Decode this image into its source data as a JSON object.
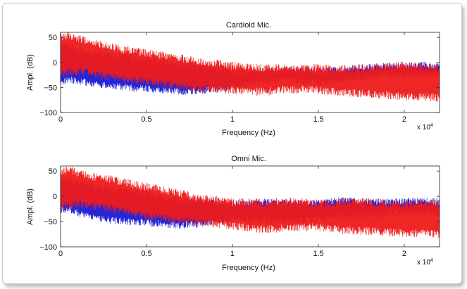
{
  "chart_data": [
    {
      "type": "line",
      "title": "Cardioid Mic.",
      "xlabel": "Frequency (Hz)",
      "ylabel": "Ampl. (dB)",
      "x_multiplier_label": "x 10",
      "x_multiplier_exp": "4",
      "xlim": [
        0,
        22050
      ],
      "ylim": [
        -100,
        60
      ],
      "xticks": [
        0,
        5000,
        10000,
        15000,
        20000
      ],
      "xtick_labels": [
        "0",
        "0.5",
        "1",
        "1.5",
        "2"
      ],
      "yticks": [
        50,
        0,
        -50,
        -100
      ],
      "ytick_labels": [
        "50",
        "0",
        "−50",
        "−100"
      ],
      "series": [
        {
          "color": "#1a1ad6",
          "x": [
            0,
            500,
            1000,
            2000,
            3000,
            4000,
            5000,
            6000,
            7000,
            8000,
            9000,
            10000,
            11000,
            12000,
            13000,
            14000,
            15000,
            16000,
            17000,
            18000,
            19000,
            20000,
            21000,
            22050
          ],
          "upper": [
            35,
            30,
            22,
            15,
            12,
            8,
            4,
            0,
            -5,
            -10,
            -15,
            -20,
            -22,
            -20,
            -18,
            -20,
            -22,
            -18,
            -14,
            -12,
            -10,
            -8,
            -8,
            -10
          ],
          "lower": [
            -40,
            -30,
            -35,
            -40,
            -45,
            -48,
            -50,
            -52,
            -55,
            -55,
            -50,
            -45,
            -40,
            -35,
            -32,
            -35,
            -38,
            -36,
            -30,
            -26,
            -22,
            -22,
            -22,
            -22
          ],
          "noise": 14
        },
        {
          "color": "#ee1a1a",
          "x": [
            0,
            500,
            1000,
            2000,
            3000,
            4000,
            5000,
            6000,
            7000,
            8000,
            9000,
            10000,
            11000,
            12000,
            13000,
            14000,
            15000,
            16000,
            17000,
            18000,
            19000,
            20000,
            21000,
            22050
          ],
          "upper": [
            48,
            50,
            45,
            35,
            28,
            20,
            15,
            10,
            5,
            0,
            -5,
            -10,
            -12,
            -14,
            -15,
            -15,
            -14,
            -16,
            -15,
            -14,
            -12,
            -10,
            -12,
            -15
          ],
          "lower": [
            -20,
            -15,
            -15,
            -20,
            -25,
            -30,
            -35,
            -40,
            -45,
            -48,
            -50,
            -52,
            -55,
            -55,
            -52,
            -50,
            -52,
            -55,
            -58,
            -60,
            -62,
            -65,
            -65,
            -68
          ],
          "noise": 16
        }
      ]
    },
    {
      "type": "line",
      "title": "Omni Mic.",
      "xlabel": "Frequency (Hz)",
      "ylabel": "Ampl. (dB)",
      "x_multiplier_label": "x 10",
      "x_multiplier_exp": "4",
      "xlim": [
        0,
        22050
      ],
      "ylim": [
        -100,
        60
      ],
      "xticks": [
        0,
        5000,
        10000,
        15000,
        20000
      ],
      "xtick_labels": [
        "0",
        "0.5",
        "1",
        "1.5",
        "2"
      ],
      "yticks": [
        50,
        0,
        -50,
        -100
      ],
      "ytick_labels": [
        "50",
        "0",
        "−50",
        "−100"
      ],
      "series": [
        {
          "color": "#1a1ad6",
          "x": [
            0,
            500,
            1000,
            2000,
            3000,
            4000,
            5000,
            6000,
            7000,
            8000,
            9000,
            10000,
            11000,
            12000,
            13000,
            14000,
            15000,
            16000,
            17000,
            18000,
            19000,
            20000,
            21000,
            22050
          ],
          "upper": [
            30,
            28,
            25,
            18,
            12,
            8,
            2,
            -5,
            -10,
            -12,
            -15,
            -18,
            -15,
            -14,
            -16,
            -18,
            -15,
            -12,
            -12,
            -14,
            -14,
            -12,
            -12,
            -14
          ],
          "lower": [
            -25,
            -22,
            -30,
            -38,
            -45,
            -48,
            -50,
            -52,
            -55,
            -52,
            -48,
            -45,
            -42,
            -45,
            -48,
            -45,
            -40,
            -38,
            -36,
            -35,
            -32,
            -30,
            -30,
            -32
          ],
          "noise": 14
        },
        {
          "color": "#ee1a1a",
          "x": [
            0,
            500,
            1000,
            2000,
            3000,
            4000,
            5000,
            6000,
            7000,
            8000,
            9000,
            10000,
            11000,
            12000,
            13000,
            14000,
            15000,
            16000,
            17000,
            18000,
            19000,
            20000,
            21000,
            22050
          ],
          "upper": [
            45,
            50,
            42,
            35,
            30,
            22,
            15,
            10,
            2,
            -5,
            -10,
            -15,
            -15,
            -16,
            -12,
            -14,
            -18,
            -16,
            -14,
            -15,
            -18,
            -20,
            -16,
            -18
          ],
          "lower": [
            -20,
            -15,
            -12,
            -18,
            -22,
            -28,
            -35,
            -40,
            -45,
            -48,
            -52,
            -55,
            -60,
            -62,
            -60,
            -58,
            -58,
            -62,
            -65,
            -66,
            -68,
            -70,
            -70,
            -72
          ],
          "noise": 16
        }
      ]
    }
  ]
}
